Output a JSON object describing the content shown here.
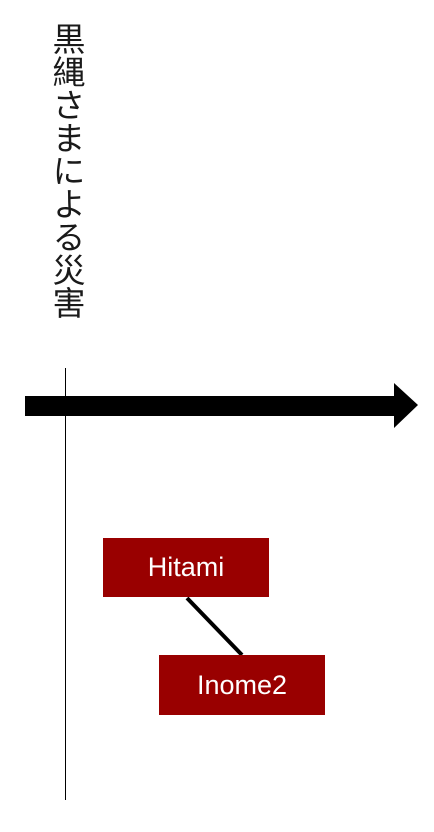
{
  "title": {
    "text": "黒縄さまによる災害"
  },
  "nodes": {
    "hitami": {
      "label": "Hitami"
    },
    "inome2": {
      "label": "Inome2"
    }
  },
  "colors": {
    "node_fill": "#990000",
    "node_text": "#ffffff",
    "line": "#000000"
  }
}
